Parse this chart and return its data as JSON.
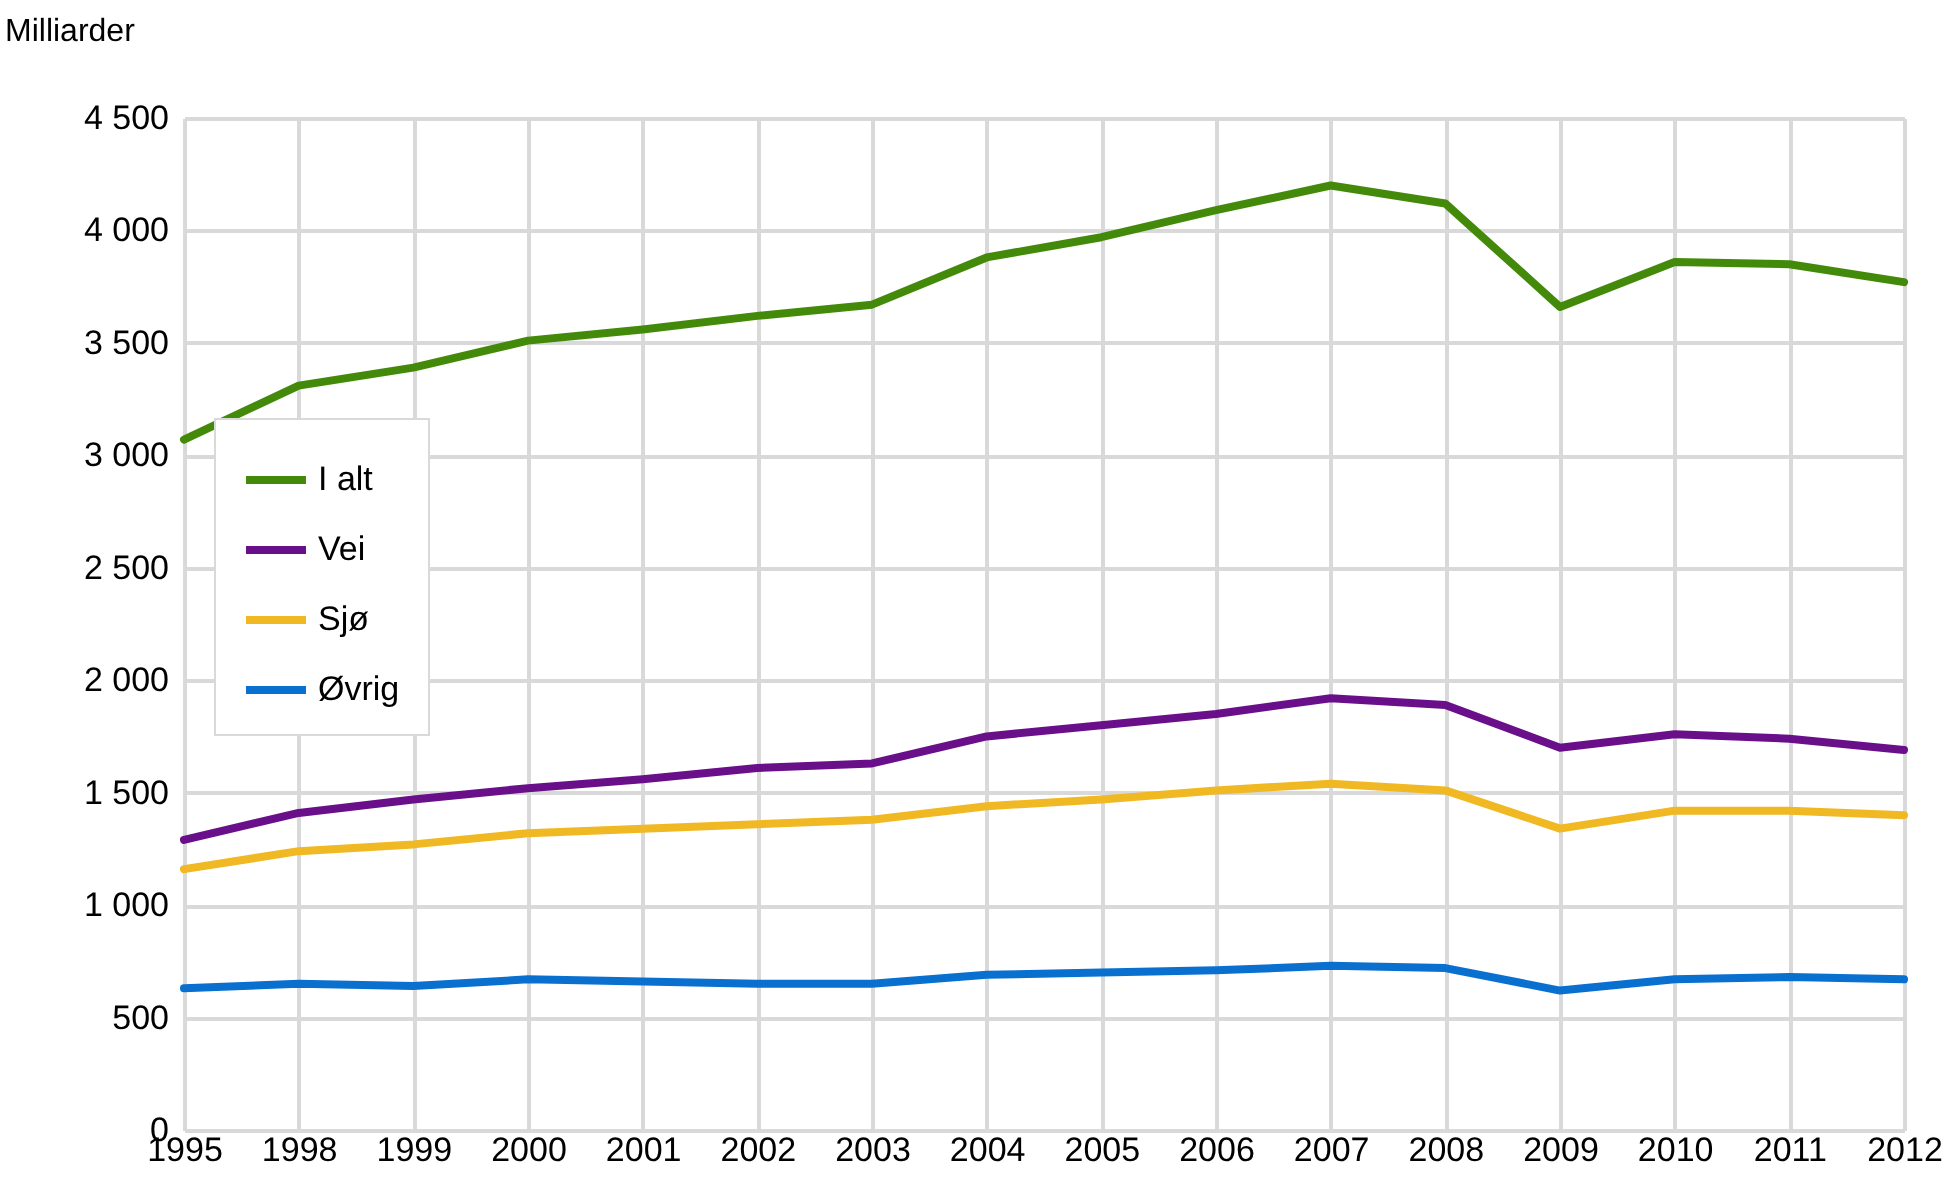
{
  "chart_data": {
    "type": "line",
    "ylabel": "Milliarder",
    "categories": [
      "1995",
      "1998",
      "1999",
      "2000",
      "2001",
      "2002",
      "2003",
      "2004",
      "2005",
      "2006",
      "2007",
      "2008",
      "2009",
      "2010",
      "2011",
      "2012"
    ],
    "series": [
      {
        "name": "I alt",
        "color": "#448a0a",
        "values": [
          3070,
          3310,
          3390,
          3510,
          3560,
          3620,
          3670,
          3880,
          3970,
          4090,
          4200,
          4120,
          3660,
          3860,
          3850,
          3770
        ]
      },
      {
        "name": "Vei",
        "color": "#6a0f8a",
        "values": [
          1290,
          1410,
          1470,
          1520,
          1560,
          1610,
          1630,
          1750,
          1800,
          1850,
          1920,
          1890,
          1700,
          1760,
          1740,
          1690
        ]
      },
      {
        "name": "Sjø",
        "color": "#f0b823",
        "values": [
          1160,
          1240,
          1270,
          1320,
          1340,
          1360,
          1380,
          1440,
          1470,
          1510,
          1540,
          1510,
          1340,
          1420,
          1420,
          1400
        ]
      },
      {
        "name": "Øvrig",
        "color": "#0a70d0",
        "values": [
          630,
          650,
          640,
          670,
          660,
          650,
          650,
          690,
          700,
          710,
          730,
          720,
          620,
          670,
          680,
          670
        ]
      }
    ],
    "ylim": [
      0,
      4500
    ],
    "yticks": [
      0,
      {
        "value": 500,
        "label": "500"
      },
      {
        "value": 1000,
        "label": "1 000"
      },
      {
        "value": 1500,
        "label": "1 500"
      },
      {
        "value": 2000,
        "label": "2 000"
      },
      {
        "value": 2500,
        "label": "2 500"
      },
      {
        "value": 3000,
        "label": "3 000"
      },
      {
        "value": 3500,
        "label": "3 500"
      },
      {
        "value": 4000,
        "label": "4 000"
      },
      {
        "value": 4500,
        "label": "4 500"
      }
    ],
    "grid": true,
    "legend": "left",
    "line_style": "solid",
    "marker": "none"
  }
}
